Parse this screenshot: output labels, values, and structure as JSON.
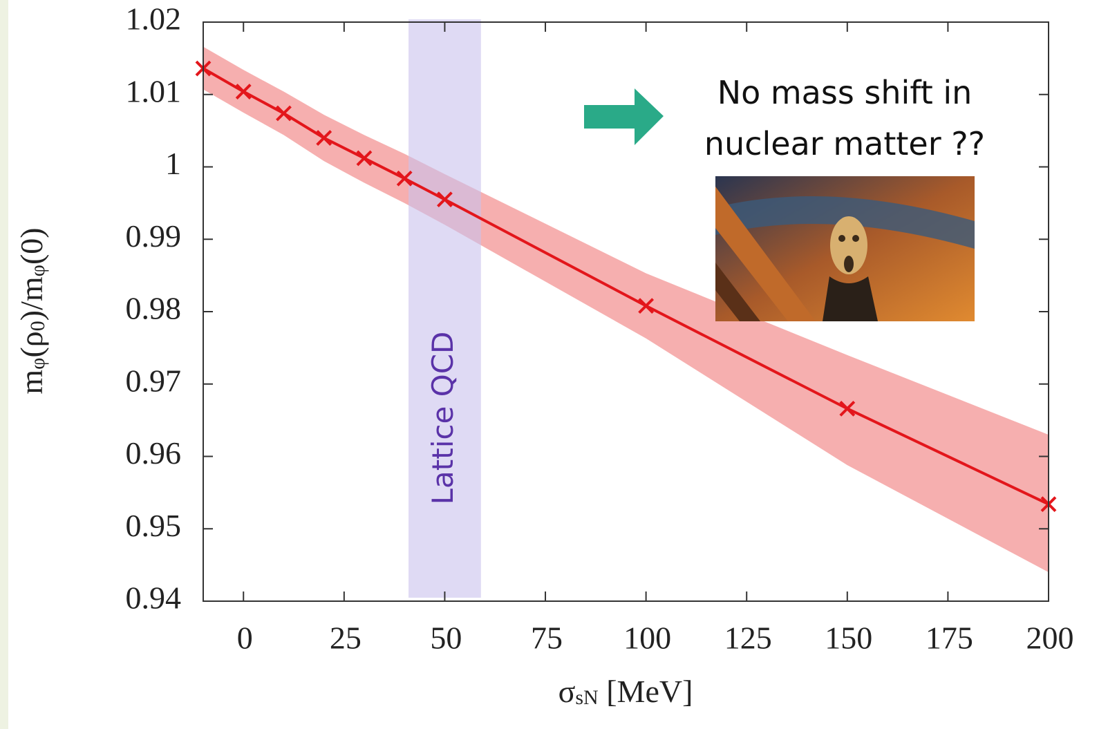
{
  "chart_data": {
    "type": "line",
    "x_label_parts": [
      {
        "text": "σ",
        "sub": false
      },
      {
        "text": "sN",
        "sub": true
      },
      {
        "text": " [MeV]",
        "sub": false
      }
    ],
    "y_label_parts": [
      {
        "text": "m",
        "sub": false
      },
      {
        "text": "φ",
        "sub": true
      },
      {
        "text": "(ρ",
        "sub": false
      },
      {
        "text": "0",
        "sub": true
      },
      {
        "text": ")/m",
        "sub": false
      },
      {
        "text": "φ",
        "sub": true
      },
      {
        "text": "(0)",
        "sub": false
      }
    ],
    "x": [
      -10,
      0,
      10,
      20,
      30,
      40,
      50,
      100,
      150,
      200
    ],
    "series": [
      {
        "color": "#e3161b",
        "values": [
          1.0136,
          1.0104,
          1.0074,
          1.004,
          1.0012,
          0.9984,
          0.9955,
          0.9808,
          0.9666,
          0.9534
        ],
        "band": {
          "color": "#f07a7a",
          "lower": [
            1.0107,
            1.0075,
            1.0044,
            1.0008,
            0.9978,
            0.995,
            0.992,
            0.9763,
            0.9588,
            0.944
          ],
          "upper": [
            1.0166,
            1.0134,
            1.0104,
            1.0072,
            1.0044,
            1.0018,
            0.999,
            0.9853,
            0.974,
            0.963
          ]
        }
      }
    ],
    "xlim": [
      -10,
      200
    ],
    "ylim": [
      0.94,
      1.02
    ],
    "xticks": [
      0,
      25,
      50,
      75,
      100,
      125,
      150,
      175,
      200
    ],
    "yticks": [
      0.94,
      0.95,
      0.96,
      0.97,
      0.98,
      0.99,
      1,
      1.01,
      1.02
    ],
    "highlight": {
      "range": [
        41,
        59
      ],
      "label": "Lattice QCD",
      "color": "#c9c2ec",
      "label_color": "#5a32a8"
    },
    "annotation": {
      "lines": [
        "No mass shift in",
        "nuclear matter ??"
      ],
      "arrow_color": "#2aaa88"
    }
  }
}
